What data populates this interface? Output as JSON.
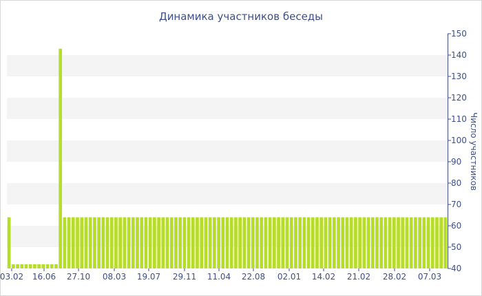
{
  "chart_data": {
    "type": "bar",
    "title": "Динамика участников беседы",
    "xlabel": "",
    "ylabel": "Число участников",
    "ylim": [
      40,
      150
    ],
    "y_ticks": [
      40,
      50,
      60,
      70,
      80,
      90,
      100,
      110,
      120,
      130,
      140,
      150
    ],
    "y_axis_side": "right",
    "grid": "alternating horizontal bands",
    "x_tick_labels": [
      "03.02",
      "16.06",
      "27.10",
      "08.03",
      "19.07",
      "29.11",
      "11.04",
      "22.08",
      "02.01",
      "14.02",
      "21.02",
      "28.02",
      "07.03"
    ],
    "bar_color": "#b5dd2a",
    "band_color": "#f4f4f4",
    "text_color": "#3d4f86",
    "values": [
      64,
      42,
      42,
      42,
      42,
      42,
      42,
      42,
      42,
      42,
      42,
      42,
      143,
      64,
      64,
      64,
      64,
      64,
      64,
      64,
      64,
      64,
      64,
      64,
      64,
      64,
      64,
      64,
      64,
      64,
      64,
      64,
      64,
      64,
      64,
      64,
      64,
      64,
      64,
      64,
      64,
      64,
      64,
      64,
      64,
      64,
      64,
      64,
      64,
      64,
      64,
      64,
      64,
      64,
      64,
      64,
      64,
      64,
      64,
      64,
      64,
      64,
      64,
      64,
      64,
      64,
      64,
      64,
      64,
      64,
      64,
      64,
      64,
      64,
      64,
      64,
      64,
      64,
      64,
      64,
      64,
      64,
      64,
      64,
      64,
      64,
      64,
      64,
      64,
      64,
      64,
      64,
      64,
      64,
      64,
      64,
      64,
      64,
      64,
      64,
      64,
      64,
      64
    ]
  }
}
